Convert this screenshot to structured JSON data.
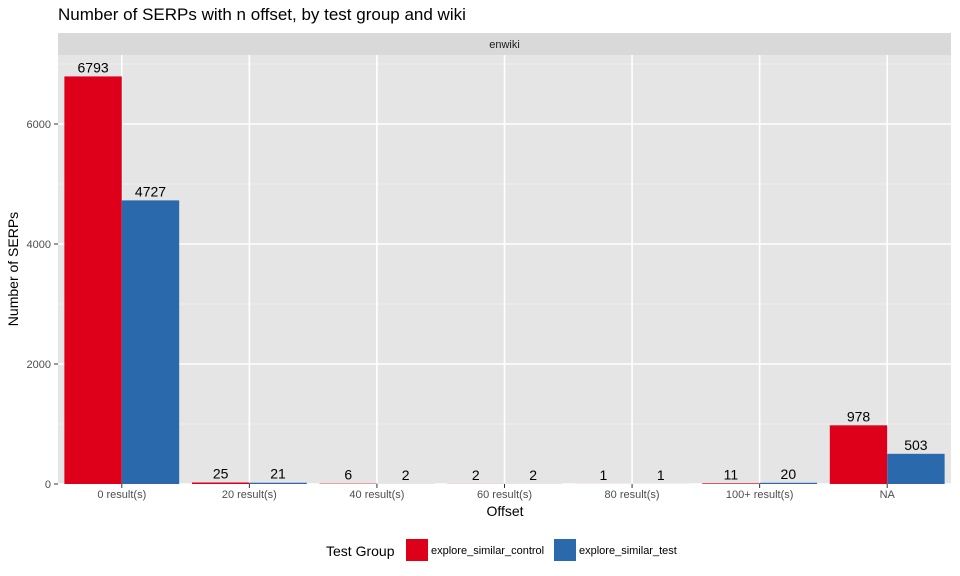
{
  "chart_data": {
    "type": "bar",
    "title": "Number of SERPs with n offset, by test group and wiki",
    "facet": "enwiki",
    "xlabel": "Offset",
    "ylabel": "Number of SERPs",
    "categories": [
      "0 result(s)",
      "20 result(s)",
      "40 result(s)",
      "60 result(s)",
      "80 result(s)",
      "100+ result(s)",
      "NA"
    ],
    "series": [
      {
        "name": "explore_similar_control",
        "color": "#de001a",
        "values": [
          6793,
          25,
          6,
          2,
          1,
          11,
          978
        ]
      },
      {
        "name": "explore_similar_test",
        "color": "#2b69ad",
        "values": [
          4727,
          21,
          2,
          2,
          1,
          20,
          503
        ]
      }
    ],
    "ylim": [
      0,
      7150
    ],
    "yticks": [
      0,
      2000,
      4000,
      6000
    ],
    "grid": true,
    "legend": {
      "title": "Test Group",
      "position": "bottom"
    }
  }
}
